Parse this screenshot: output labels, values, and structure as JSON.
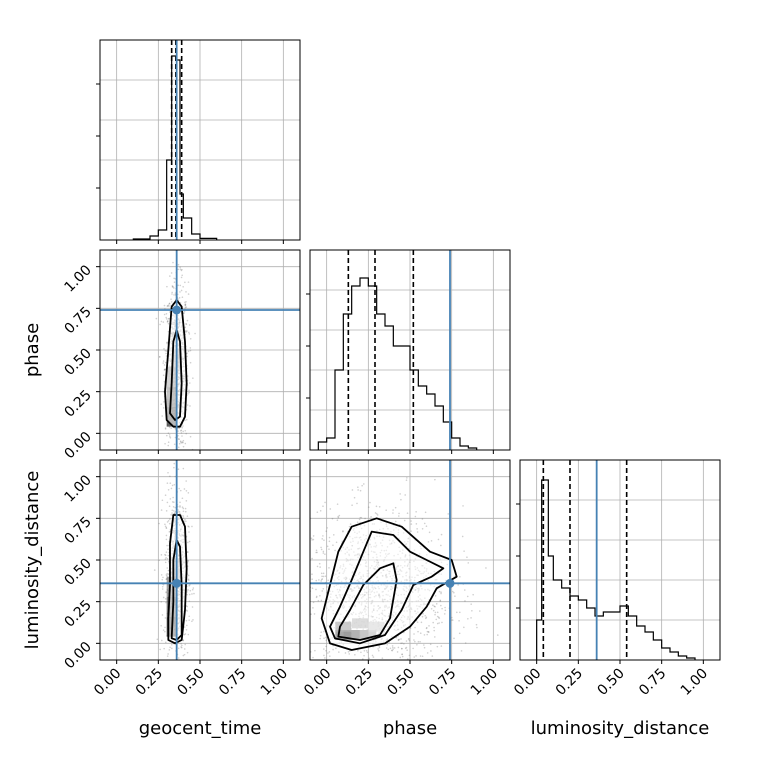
{
  "figure": {
    "type": "corner-plot",
    "parameters": [
      "geocent_time",
      "phase",
      "luminosity_distance"
    ],
    "axis_labels": {
      "x": [
        "geocent_time",
        "phase",
        "luminosity_distance"
      ],
      "y": [
        "phase",
        "luminosity_distance"
      ]
    },
    "colors": {
      "truth": "#4682b4",
      "contour": "#000000",
      "grid": "#b0b0b0",
      "scatter": "#777777"
    }
  },
  "chart_data": [
    {
      "type": "histogram",
      "parameter": "geocent_time",
      "panel": "diag-0",
      "xlim": [
        -0.1,
        1.1
      ],
      "ylim": [
        0,
        1.0
      ],
      "bins": [
        [
          0.1,
          0.2,
          0.005
        ],
        [
          0.2,
          0.25,
          0.02
        ],
        [
          0.25,
          0.3,
          0.05
        ],
        [
          0.3,
          0.33,
          0.4
        ],
        [
          0.33,
          0.36,
          0.92
        ],
        [
          0.36,
          0.38,
          0.9
        ],
        [
          0.38,
          0.4,
          0.23
        ],
        [
          0.4,
          0.45,
          0.11
        ],
        [
          0.45,
          0.5,
          0.03
        ],
        [
          0.5,
          0.6,
          0.008
        ]
      ],
      "quantile_lines": [
        0.33,
        0.355,
        0.39
      ],
      "truth": 0.36,
      "yticks_shown": true,
      "xtick_labels_shown": false
    },
    {
      "type": "histogram",
      "parameter": "phase",
      "panel": "diag-1",
      "xlim": [
        -0.1,
        1.1
      ],
      "ylim": [
        0,
        1.0
      ],
      "bins": [
        [
          -0.05,
          0.0,
          0.04
        ],
        [
          0.0,
          0.05,
          0.06
        ],
        [
          0.05,
          0.1,
          0.4
        ],
        [
          0.1,
          0.15,
          0.68
        ],
        [
          0.15,
          0.2,
          0.82
        ],
        [
          0.2,
          0.25,
          0.86
        ],
        [
          0.25,
          0.3,
          0.82
        ],
        [
          0.3,
          0.35,
          0.68
        ],
        [
          0.35,
          0.4,
          0.62
        ],
        [
          0.4,
          0.45,
          0.52
        ],
        [
          0.45,
          0.5,
          0.52
        ],
        [
          0.5,
          0.55,
          0.4
        ],
        [
          0.55,
          0.6,
          0.32
        ],
        [
          0.6,
          0.65,
          0.28
        ],
        [
          0.65,
          0.7,
          0.22
        ],
        [
          0.7,
          0.75,
          0.14
        ],
        [
          0.75,
          0.8,
          0.06
        ],
        [
          0.8,
          0.85,
          0.02
        ],
        [
          0.85,
          0.9,
          0.01
        ]
      ],
      "quantile_lines": [
        0.13,
        0.29,
        0.52
      ],
      "truth": 0.74,
      "yticks_shown": true,
      "xtick_labels_shown": false
    },
    {
      "type": "histogram",
      "parameter": "luminosity_distance",
      "panel": "diag-2",
      "xlim": [
        -0.1,
        1.1
      ],
      "ylim": [
        0,
        1.0
      ],
      "bins": [
        [
          0.0,
          0.03,
          0.2
        ],
        [
          0.03,
          0.07,
          0.9
        ],
        [
          0.07,
          0.1,
          0.52
        ],
        [
          0.1,
          0.15,
          0.4
        ],
        [
          0.15,
          0.2,
          0.36
        ],
        [
          0.2,
          0.25,
          0.32
        ],
        [
          0.25,
          0.3,
          0.3
        ],
        [
          0.3,
          0.35,
          0.26
        ],
        [
          0.35,
          0.4,
          0.22
        ],
        [
          0.4,
          0.45,
          0.24
        ],
        [
          0.45,
          0.5,
          0.24
        ],
        [
          0.5,
          0.55,
          0.27
        ],
        [
          0.55,
          0.6,
          0.22
        ],
        [
          0.6,
          0.65,
          0.17
        ],
        [
          0.65,
          0.7,
          0.14
        ],
        [
          0.7,
          0.75,
          0.1
        ],
        [
          0.75,
          0.8,
          0.06
        ],
        [
          0.8,
          0.85,
          0.04
        ],
        [
          0.85,
          0.9,
          0.02
        ],
        [
          0.9,
          0.95,
          0.01
        ]
      ],
      "quantile_lines": [
        0.04,
        0.2,
        0.54
      ],
      "truth": 0.36,
      "yticks_shown": true,
      "xtick_labels_shown": true
    },
    {
      "type": "contour-scatter",
      "x_parameter": "geocent_time",
      "y_parameter": "phase",
      "panel": "r1-c0",
      "xlim": [
        -0.1,
        1.1
      ],
      "ylim": [
        -0.1,
        1.1
      ],
      "truth": [
        0.36,
        0.74
      ],
      "contours": [
        [
          [
            0.3,
            0.08
          ],
          [
            0.34,
            0.04
          ],
          [
            0.38,
            0.04
          ],
          [
            0.41,
            0.1
          ],
          [
            0.42,
            0.3
          ],
          [
            0.41,
            0.55
          ],
          [
            0.39,
            0.76
          ],
          [
            0.36,
            0.8
          ],
          [
            0.33,
            0.76
          ],
          [
            0.31,
            0.5
          ],
          [
            0.29,
            0.25
          ]
        ],
        [
          [
            0.32,
            0.12
          ],
          [
            0.35,
            0.08
          ],
          [
            0.38,
            0.1
          ],
          [
            0.39,
            0.3
          ],
          [
            0.38,
            0.55
          ],
          [
            0.36,
            0.62
          ],
          [
            0.34,
            0.55
          ],
          [
            0.33,
            0.3
          ]
        ]
      ],
      "scatter_density": "dense-near-x-0.36",
      "xtick_labels_shown": false
    },
    {
      "type": "contour-scatter",
      "x_parameter": "geocent_time",
      "y_parameter": "luminosity_distance",
      "panel": "r2-c0",
      "xlim": [
        -0.1,
        1.1
      ],
      "ylim": [
        -0.1,
        1.1
      ],
      "truth": [
        0.36,
        0.36
      ],
      "contours": [
        [
          [
            0.31,
            0.02
          ],
          [
            0.35,
            0.0
          ],
          [
            0.39,
            0.02
          ],
          [
            0.41,
            0.2
          ],
          [
            0.42,
            0.45
          ],
          [
            0.41,
            0.7
          ],
          [
            0.38,
            0.77
          ],
          [
            0.34,
            0.77
          ],
          [
            0.32,
            0.6
          ],
          [
            0.32,
            0.35
          ],
          [
            0.31,
            0.15
          ]
        ],
        [
          [
            0.33,
            0.03
          ],
          [
            0.36,
            0.02
          ],
          [
            0.39,
            0.05
          ],
          [
            0.39,
            0.35
          ],
          [
            0.38,
            0.58
          ],
          [
            0.36,
            0.62
          ],
          [
            0.34,
            0.5
          ],
          [
            0.34,
            0.25
          ]
        ]
      ],
      "scatter_density": "dense-near-x-0.36",
      "xtick_labels_shown": true
    },
    {
      "type": "contour-scatter",
      "x_parameter": "phase",
      "y_parameter": "luminosity_distance",
      "panel": "r2-c1",
      "xlim": [
        -0.1,
        1.1
      ],
      "ylim": [
        -0.1,
        1.1
      ],
      "truth": [
        0.74,
        0.36
      ],
      "contours": [
        [
          [
            0.02,
            0.0
          ],
          [
            0.15,
            -0.04
          ],
          [
            0.35,
            0.0
          ],
          [
            0.5,
            0.1
          ],
          [
            0.6,
            0.22
          ],
          [
            0.66,
            0.33
          ],
          [
            0.78,
            0.4
          ],
          [
            0.75,
            0.5
          ],
          [
            0.62,
            0.55
          ],
          [
            0.45,
            0.7
          ],
          [
            0.3,
            0.75
          ],
          [
            0.15,
            0.7
          ],
          [
            0.07,
            0.55
          ],
          [
            0.02,
            0.35
          ],
          [
            -0.03,
            0.15
          ]
        ],
        [
          [
            0.05,
            0.03
          ],
          [
            0.2,
            0.0
          ],
          [
            0.35,
            0.05
          ],
          [
            0.45,
            0.2
          ],
          [
            0.52,
            0.35
          ],
          [
            0.63,
            0.4
          ],
          [
            0.7,
            0.45
          ],
          [
            0.6,
            0.5
          ],
          [
            0.5,
            0.55
          ],
          [
            0.4,
            0.65
          ],
          [
            0.27,
            0.67
          ],
          [
            0.22,
            0.55
          ],
          [
            0.15,
            0.38
          ],
          [
            0.08,
            0.22
          ],
          [
            0.02,
            0.1
          ]
        ],
        [
          [
            0.07,
            0.04
          ],
          [
            0.2,
            0.02
          ],
          [
            0.32,
            0.05
          ],
          [
            0.38,
            0.15
          ],
          [
            0.42,
            0.38
          ],
          [
            0.4,
            0.48
          ],
          [
            0.32,
            0.45
          ],
          [
            0.22,
            0.35
          ],
          [
            0.14,
            0.2
          ],
          [
            0.08,
            0.1
          ]
        ]
      ],
      "scatter_density": "broad",
      "xtick_labels_shown": true
    }
  ],
  "ticks": {
    "x": [
      "0.00",
      "0.25",
      "0.50",
      "0.75",
      "1.00"
    ],
    "y": [
      "0.00",
      "0.25",
      "0.50",
      "0.75",
      "1.00"
    ],
    "values": [
      0,
      0.25,
      0.5,
      0.75,
      1.0
    ]
  }
}
